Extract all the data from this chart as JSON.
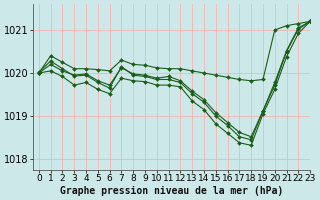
{
  "title": "Graphe pression niveau de la mer (hPa)",
  "background_color": "#cde8e8",
  "plot_bg_color": "#cde8e8",
  "grid_color": "#ffaaaa",
  "line_color": "#1a5c1a",
  "marker_color": "#1a5c1a",
  "xlim": [
    -0.5,
    23
  ],
  "ylim": [
    1017.75,
    1021.6
  ],
  "yticks": [
    1018,
    1019,
    1020,
    1021
  ],
  "xticks": [
    0,
    1,
    2,
    3,
    4,
    5,
    6,
    7,
    8,
    9,
    10,
    11,
    12,
    13,
    14,
    15,
    16,
    17,
    18,
    19,
    20,
    21,
    22,
    23
  ],
  "series": [
    [
      1020.0,
      1020.4,
      1020.25,
      1020.05,
      1020.05,
      1020.05,
      1020.05,
      1020.3,
      1020.2,
      1020.2,
      1020.15,
      1020.15,
      1020.1,
      1020.05,
      1020.0,
      1019.9,
      1019.85,
      1019.8,
      1019.75,
      1019.75,
      1021.0,
      1021.1,
      1021.15,
      1021.2
    ],
    [
      1020.0,
      1020.2,
      1020.1,
      1019.95,
      1020.0,
      1019.85,
      1019.75,
      1020.1,
      1020.0,
      1019.98,
      1019.9,
      1019.95,
      1019.85,
      1019.6,
      1019.4,
      1019.15,
      1018.9,
      1018.8,
      1018.7,
      1019.2,
      1019.85,
      1020.6,
      1021.05,
      1021.2
    ],
    [
      1020.05,
      1020.3,
      1020.1,
      1019.97,
      1019.97,
      1019.83,
      1019.7,
      1020.2,
      1019.95,
      1019.93,
      1019.87,
      1019.88,
      1019.82,
      1019.55,
      1019.35,
      1019.05,
      1018.82,
      1018.62,
      1018.55,
      1019.15,
      1019.75,
      1020.5,
      1021.07,
      1021.2
    ],
    [
      1020.0,
      1020.05,
      1019.95,
      1019.75,
      1019.8,
      1019.6,
      1019.5,
      1019.85,
      1019.85,
      1019.82,
      1019.75,
      1019.75,
      1019.7,
      1019.38,
      1019.18,
      1018.85,
      1018.62,
      1018.42,
      1018.37,
      1019.1,
      1019.65,
      1020.42,
      1020.95,
      1021.2
    ]
  ],
  "xlabel_fontsize": 6.5,
  "ylabel_fontsize": 7,
  "title_fontsize": 7
}
